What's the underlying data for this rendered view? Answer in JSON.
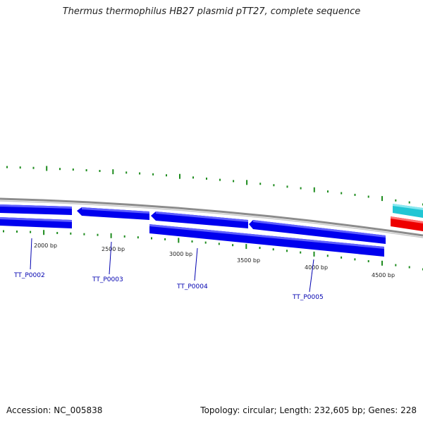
{
  "title": "Thermus thermophilus HB27 plasmid pTT27, complete sequence",
  "footer": {
    "accession": "Accession: NC_005838",
    "summary": "Topology: circular; Length: 232,605 bp; Genes: 228"
  },
  "colors": {
    "backbone": "#8c8c8c",
    "gene": "#0000ee",
    "gene_highlight": "#5a5aff",
    "tick": "#1e8c1e",
    "label_line": "#0000b0",
    "cyan_feature": "#22c6d4",
    "red_feature": "#ee0000"
  },
  "position_labels": [
    {
      "text": "2000 bp"
    },
    {
      "text": "2500 bp"
    },
    {
      "text": "3000 bp"
    },
    {
      "text": "3500 bp"
    },
    {
      "text": "4000 bp"
    },
    {
      "text": "4500 bp"
    }
  ],
  "genes": [
    {
      "label": "TT_P0002",
      "strand": "forward"
    },
    {
      "label": "TT_P0003",
      "strand": "reverse"
    },
    {
      "label": "TT_P0004",
      "strand": "reverse"
    },
    {
      "label": "TT_P0005",
      "strand": "reverse"
    }
  ]
}
